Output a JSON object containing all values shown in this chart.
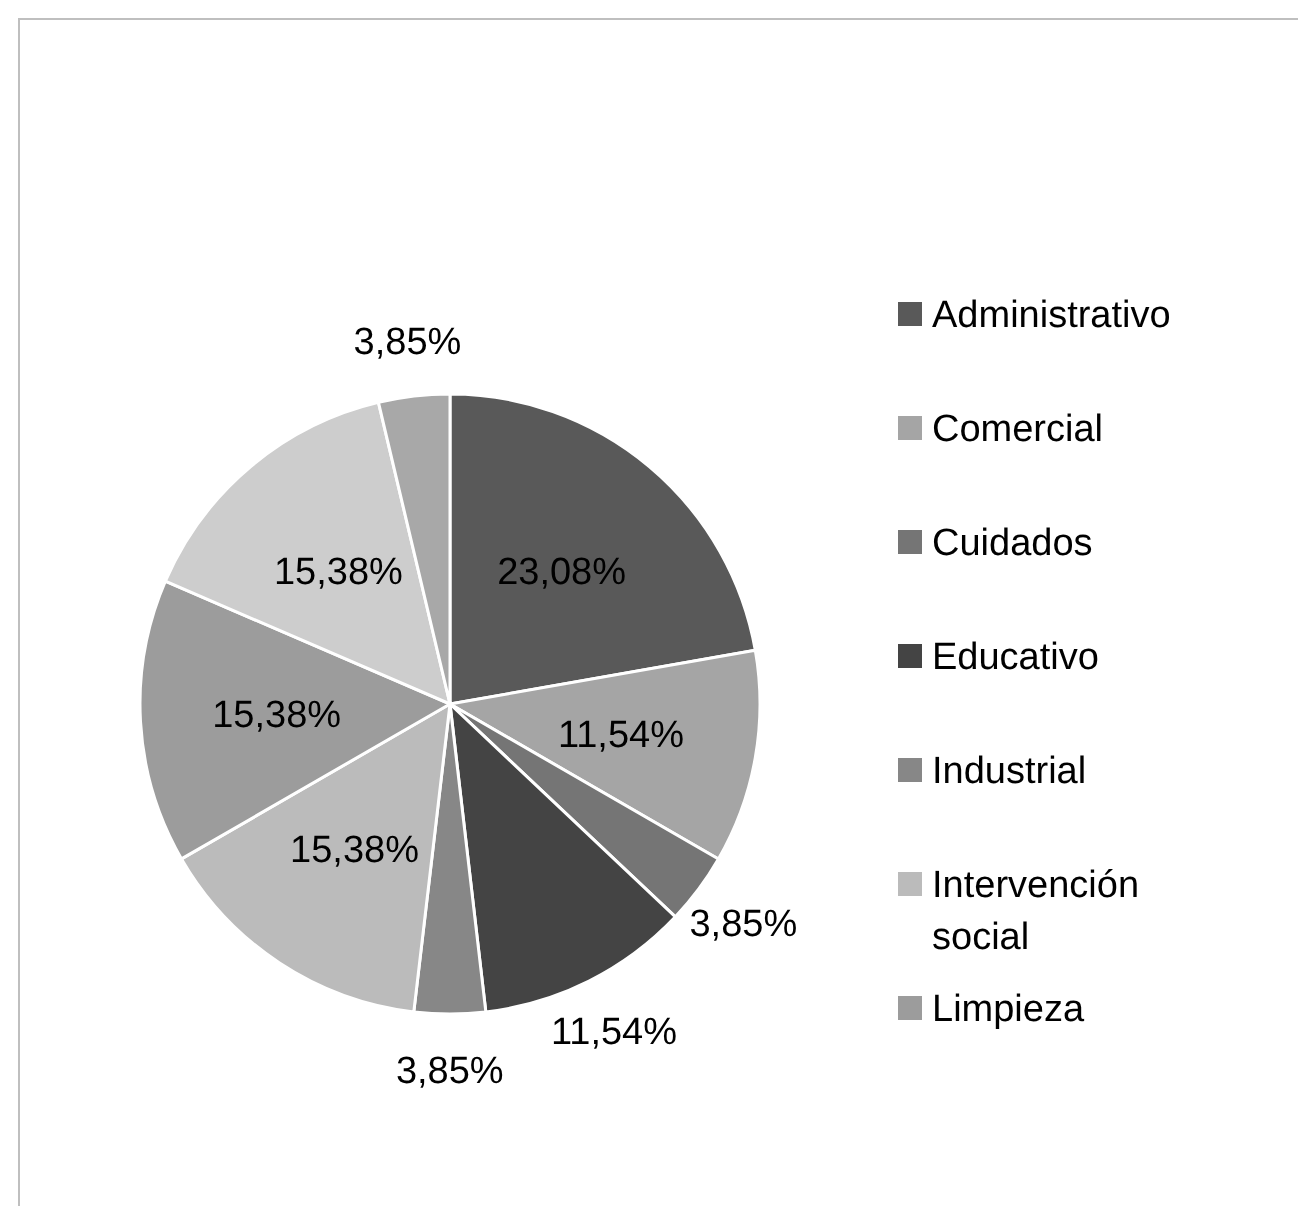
{
  "chart_data": {
    "type": "pie",
    "categories": [
      "Administrativo",
      "Comercial",
      "Cuidados",
      "Educativo",
      "Industrial",
      "Intervención social",
      "Limpieza",
      null,
      null
    ],
    "values": [
      23.08,
      11.54,
      3.85,
      11.54,
      3.85,
      15.38,
      15.38,
      15.38,
      3.85
    ],
    "value_labels": [
      "23,08%",
      "11,54%",
      "3,85%",
      "11,54%",
      "3,85%",
      "15,38%",
      "15,38%",
      "15,38%",
      "3,85%"
    ],
    "colors": [
      "#595959",
      "#a5a5a5",
      "#757575",
      "#444444",
      "#878787",
      "#bbbbbb",
      "#9c9c9c",
      "#cdcdcd",
      "#a8a8a8"
    ],
    "legend": "right"
  }
}
